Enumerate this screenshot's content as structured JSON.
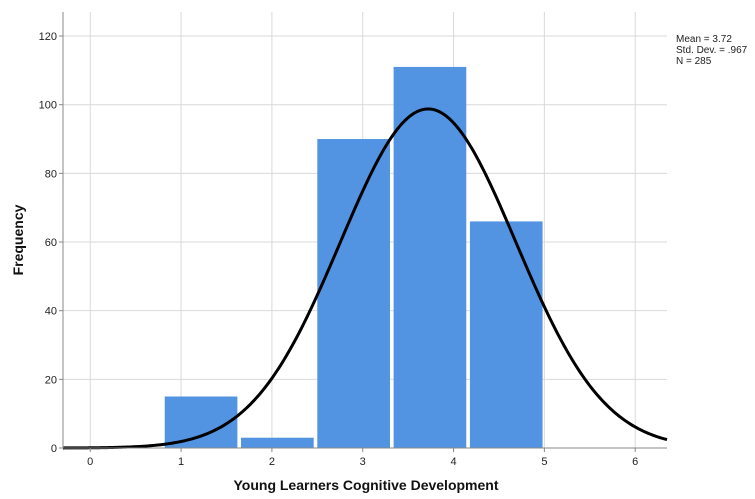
{
  "chart_data": {
    "type": "bar",
    "subtype": "histogram-with-normal-curve",
    "xlabel": "Young Learners Cognitive Development",
    "ylabel": "Frequency",
    "x_ticks": [
      0,
      1,
      2,
      3,
      4,
      5,
      6
    ],
    "y_ticks": [
      0,
      20,
      40,
      60,
      80,
      100,
      120
    ],
    "xlim": [
      -0.3,
      6.35
    ],
    "ylim": [
      0,
      127
    ],
    "bins": [
      {
        "center": 1.22,
        "width": 0.8,
        "value": 15
      },
      {
        "center": 2.06,
        "width": 0.8,
        "value": 3
      },
      {
        "center": 2.9,
        "width": 0.8,
        "value": 90
      },
      {
        "center": 3.74,
        "width": 0.8,
        "value": 111
      },
      {
        "center": 4.58,
        "width": 0.8,
        "value": 66
      }
    ],
    "normal_curve": {
      "mean": 3.72,
      "sd": 0.967,
      "n": 285,
      "bin_width": 0.84
    },
    "stats_text": [
      "Mean = 3.72",
      "Std. Dev. = .967",
      "N = 285"
    ],
    "grid": true,
    "legend": "none",
    "colors": {
      "bar": "#5294e2",
      "curve": "#000000",
      "grid": "#d9d9d9",
      "axis": "#888888"
    }
  }
}
